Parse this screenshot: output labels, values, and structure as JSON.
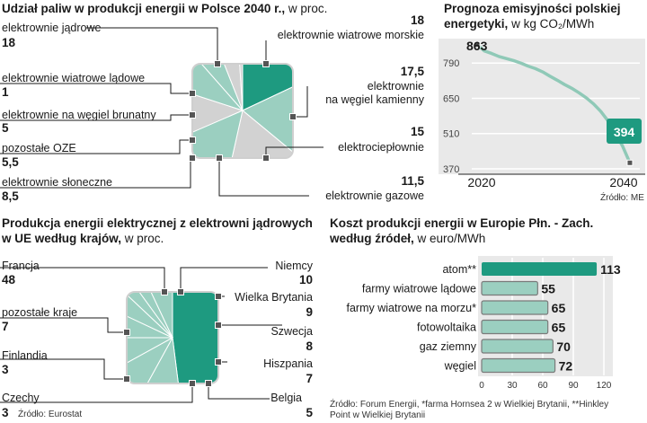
{
  "colors": {
    "dark": "#1e9a80",
    "light": "#9bcfc0",
    "gray": "#d2d2d2",
    "ink": "#1a1a1a",
    "panel_bg": "#e9e9e9"
  },
  "pie1": {
    "title": "Udział paliw w produkcji energii w Polsce 2040 r.,",
    "unit": "w proc.",
    "slices": [
      {
        "label": "elektrownie jądrowe",
        "value": "18"
      },
      {
        "label": "elektrownie wiatrowe morskie",
        "value": "18"
      },
      {
        "label": "elektrownie na węgiel kamienny",
        "label_line2": "",
        "value": "17,5"
      },
      {
        "label": "elektrociepłownie",
        "value": "15"
      },
      {
        "label": "elektrownie gazowe",
        "value": "11,5"
      },
      {
        "label": "elektrownie słoneczne",
        "value": "8,5"
      },
      {
        "label": "pozostałe OZE",
        "value": "5,5"
      },
      {
        "label": "elektrownie na węgiel brunatny",
        "value": "5"
      },
      {
        "label": "elektrownie wiatrowe lądowe",
        "value": "1"
      }
    ],
    "label_coal_line1": "elektrownie",
    "label_coal_line2": "na węgiel kamienny"
  },
  "line1": {
    "title_line1": "Prognoza emisyjności polskiej",
    "title_line2": "energetyki,",
    "unit": "w kg CO₂/MWh",
    "start_value": "863",
    "end_value": "394",
    "y_ticks": [
      "790",
      "650",
      "510",
      "370"
    ],
    "x_ticks": [
      "2020",
      "2040"
    ],
    "source": "Źródło: ME"
  },
  "chart_data": [
    {
      "type": "pie",
      "title": "Udział paliw w produkcji energii w Polsce 2040 r.",
      "categories": [
        "elektrownie jądrowe",
        "elektrownie wiatrowe morskie",
        "elektrownie na węgiel kamienny",
        "elektrociepłownie",
        "elektrownie gazowe",
        "elektrownie słoneczne",
        "pozostałe OZE",
        "elektrownie na węgiel brunatny",
        "elektrownie wiatrowe lądowe"
      ],
      "values": [
        18,
        18,
        17.5,
        15,
        11.5,
        8.5,
        5.5,
        5,
        1
      ]
    },
    {
      "type": "line",
      "title": "Prognoza emisyjności polskiej energetyki",
      "ylabel": "w kg CO₂/MWh",
      "x": [
        2019,
        2020,
        2021,
        2022,
        2023,
        2024,
        2025,
        2026,
        2027,
        2028,
        2029,
        2030,
        2031,
        2032,
        2033,
        2034,
        2035,
        2036,
        2037,
        2038,
        2039,
        2040
      ],
      "values": [
        863,
        838,
        828,
        816,
        808,
        800,
        790,
        778,
        768,
        755,
        738,
        722,
        705,
        690,
        672,
        652,
        628,
        598,
        560,
        510,
        460,
        394
      ],
      "ylim": [
        370,
        880
      ],
      "xlim": [
        2018.5,
        2040.5
      ]
    },
    {
      "type": "pie",
      "title": "Produkcja energii elektrycznej z elektrowni jądrowych w UE według krajów",
      "categories": [
        "Francja",
        "Niemcy",
        "Wielka Brytania",
        "Szwecja",
        "Hiszpania",
        "Belgia",
        "Czechy",
        "Finlandia",
        "pozostałe kraje"
      ],
      "values": [
        48,
        10,
        9,
        8,
        7,
        5,
        3,
        3,
        7
      ]
    },
    {
      "type": "bar",
      "title": "Koszt produkcji energii w Europie Płn. - Zach. według źródeł",
      "categories": [
        "atom**",
        "farmy wiatrowe lądowe",
        "farmy wiatrowe na morzu*",
        "fotowoltaika",
        "gaz ziemny",
        "węgiel"
      ],
      "values": [
        113,
        55,
        65,
        65,
        70,
        72
      ],
      "xlim": [
        0,
        120
      ]
    }
  ],
  "pie2": {
    "title_line1": "Produkcja energii elektrycznej z elektrowni jądrowych",
    "title_line2": "w UE według krajów,",
    "unit": "w proc.",
    "slices": [
      {
        "label": "Francja",
        "value": "48"
      },
      {
        "label": "Niemcy",
        "value": "10"
      },
      {
        "label": "Wielka Brytania",
        "value": "9"
      },
      {
        "label": "Szwecja",
        "value": "8"
      },
      {
        "label": "Hiszpania",
        "value": "7"
      },
      {
        "label": "Belgia",
        "value": "5"
      },
      {
        "label": "Czechy",
        "value": "3"
      },
      {
        "label": "Finlandia",
        "value": "3"
      },
      {
        "label": "pozostałe kraje",
        "value": "7"
      }
    ],
    "source": "Źródło: Eurostat"
  },
  "bar1": {
    "title_line1": "Koszt produkcji energii w Europie Płn. - Zach.",
    "title_line2": "według źródeł,",
    "unit": "w euro/MWh",
    "x_ticks": [
      "0",
      "30",
      "60",
      "90",
      "120"
    ],
    "bars": [
      {
        "label": "atom**",
        "value": "113"
      },
      {
        "label": "farmy wiatrowe lądowe",
        "value": "55"
      },
      {
        "label": "farmy wiatrowe na morzu*",
        "value": "65"
      },
      {
        "label": "fotowoltaika",
        "value": "65"
      },
      {
        "label": "gaz ziemny",
        "value": "70"
      },
      {
        "label": "węgiel",
        "value": "72"
      }
    ],
    "source_line1": "Źródło: Forum Energii, *farma Hornsea 2 w Wielkiej Brytanii, **Hinkley",
    "source_line2": "Point w Wielkiej Brytanii"
  }
}
